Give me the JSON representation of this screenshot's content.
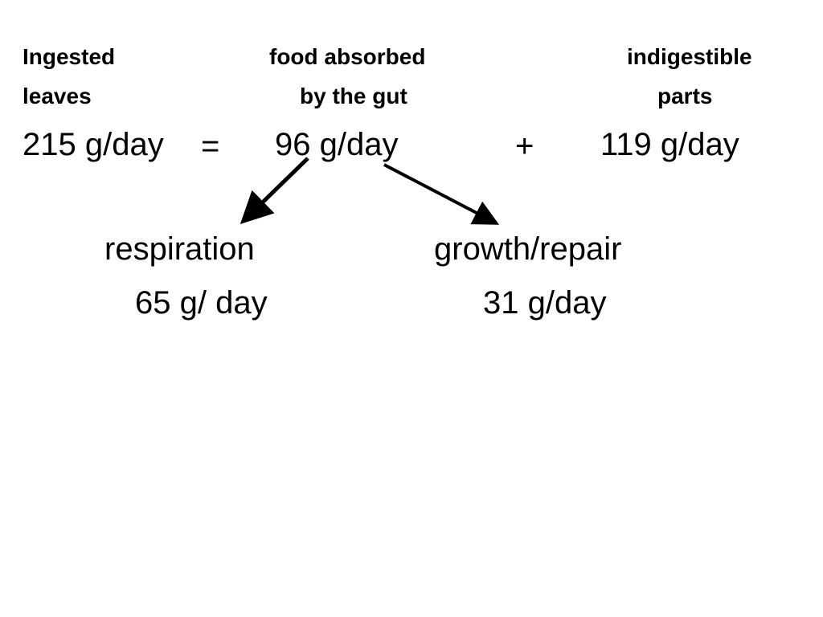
{
  "equation": {
    "terms": [
      {
        "heading": [
          "Ingested",
          "leaves"
        ],
        "amount": "215 g/day"
      },
      {
        "heading": [
          "food absorbed",
          "by the gut"
        ],
        "amount": "96 g/day"
      },
      {
        "heading": [
          "indigestible",
          "parts"
        ],
        "amount": "119 g/day"
      }
    ],
    "operators": [
      "=",
      "+"
    ]
  },
  "branches": [
    {
      "label": "respiration",
      "amount": "65 g/ day"
    },
    {
      "label": "growth/repair",
      "amount": "31 g/day"
    }
  ]
}
